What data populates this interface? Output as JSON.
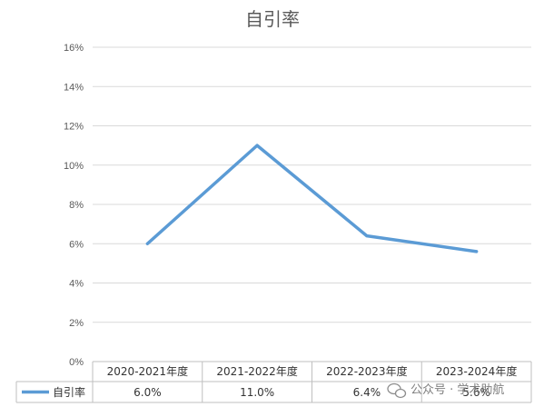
{
  "chart_data": {
    "type": "line",
    "title": "自引率",
    "categories": [
      "2020-2021年度",
      "2021-2022年度",
      "2022-2023年度",
      "2023-2024年度"
    ],
    "series": [
      {
        "name": "自引率",
        "values": [
          6.0,
          11.0,
          6.4,
          5.6
        ],
        "data_labels": [
          "6.0%",
          "11.0%",
          "6.4%",
          "5.6%"
        ],
        "color": "#5b9bd5"
      }
    ],
    "y_ticks": [
      "0%",
      "2%",
      "4%",
      "6%",
      "8%",
      "10%",
      "12%",
      "14%",
      "16%"
    ],
    "ylim": [
      0,
      16
    ],
    "grid": true,
    "legend": "data-table-bottom"
  },
  "watermark": {
    "text": "公众号 · 学术助航",
    "icon": "wechat-icon"
  }
}
